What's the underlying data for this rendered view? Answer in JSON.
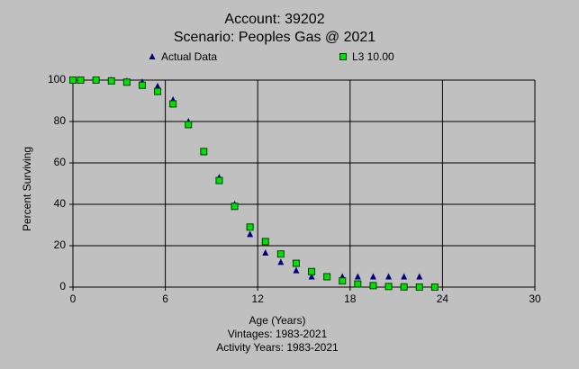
{
  "chart_data": {
    "type": "scatter",
    "title": "Account: 39202",
    "subtitle": "Scenario: Peoples Gas @ 2021",
    "xlabel": "Age (Years)",
    "ylabel": "Percent Surviving",
    "notes": [
      "Vintages: 1983-2021",
      "Activity Years: 1983-2021"
    ],
    "xlim": [
      0,
      30
    ],
    "xticks": [
      0,
      6,
      12,
      18,
      24,
      30
    ],
    "ylim": [
      0,
      100
    ],
    "yticks": [
      0,
      20,
      40,
      60,
      80,
      100
    ],
    "grid": true,
    "series": [
      {
        "name": "Actual Data",
        "color": "#000080",
        "marker": "triangle",
        "x": [
          0,
          0.5,
          1.5,
          2.5,
          3.5,
          4.5,
          5.5,
          6.5,
          7.5,
          8.5,
          9.5,
          10.5,
          11.5,
          12.5,
          13.5,
          14.5,
          15.5,
          16.5,
          17.5,
          18.5,
          19.5,
          20.5,
          21.5,
          22.5
        ],
        "values": [
          100,
          100,
          100,
          100,
          99.5,
          99,
          97,
          90.5,
          80,
          65,
          53,
          40,
          25.5,
          16.5,
          12,
          8,
          5,
          5,
          5,
          5,
          5,
          5,
          5,
          5
        ]
      },
      {
        "name": "L3 10.00",
        "color": "#00e000",
        "marker": "square",
        "x": [
          0,
          0.5,
          1.5,
          2.5,
          3.5,
          4.5,
          5.5,
          6.5,
          7.5,
          8.5,
          9.5,
          10.5,
          11.5,
          12.5,
          13.5,
          14.5,
          15.5,
          16.5,
          17.5,
          18.5,
          19.5,
          20.5,
          21.5,
          22.5,
          23.5
        ],
        "values": [
          100,
          100,
          100,
          99.6,
          99,
          97.5,
          94.5,
          88.5,
          78.5,
          65.5,
          51.5,
          39,
          29,
          22,
          16,
          11.5,
          7.5,
          5,
          3,
          1.5,
          0.7,
          0.3,
          0.1,
          0,
          0
        ]
      }
    ]
  }
}
